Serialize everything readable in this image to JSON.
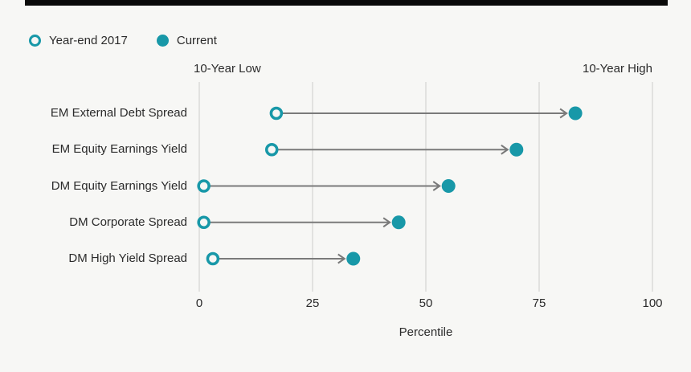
{
  "page": {
    "background": "#f7f7f5",
    "top_bar_color": "#0a0a0a"
  },
  "legend": {
    "items": [
      {
        "label": "Year-end 2017",
        "marker": "open-circle"
      },
      {
        "label": "Current",
        "marker": "filled-circle"
      }
    ]
  },
  "chart_data": {
    "type": "scatter",
    "subtype": "dumbbell-arrow-dot-plot",
    "orientation": "horizontal",
    "categories": [
      "EM External Debt Spread",
      "EM Equity Earnings Yield",
      "DM Equity Earnings Yield",
      "DM Corporate Spread",
      "DM High Yield Spread"
    ],
    "series": [
      {
        "name": "Year-end 2017",
        "marker": "open-circle",
        "values": [
          17,
          16,
          1,
          1,
          3
        ]
      },
      {
        "name": "Current",
        "marker": "filled-circle",
        "values": [
          83,
          70,
          55,
          44,
          34
        ]
      }
    ],
    "annotations": {
      "left": "10-Year Low",
      "right": "10-Year High"
    },
    "xlabel": "Percentile",
    "xlim": [
      0,
      100
    ],
    "xticks": [
      0,
      25,
      50,
      75,
      100
    ],
    "grid": "vertical-gridlines-on",
    "legend_position": "top-left",
    "colors": {
      "marker": "#1898a8",
      "arrow": "#7a7a7a",
      "gridline": "#dcdcd9",
      "text": "#2b2b2b"
    }
  }
}
